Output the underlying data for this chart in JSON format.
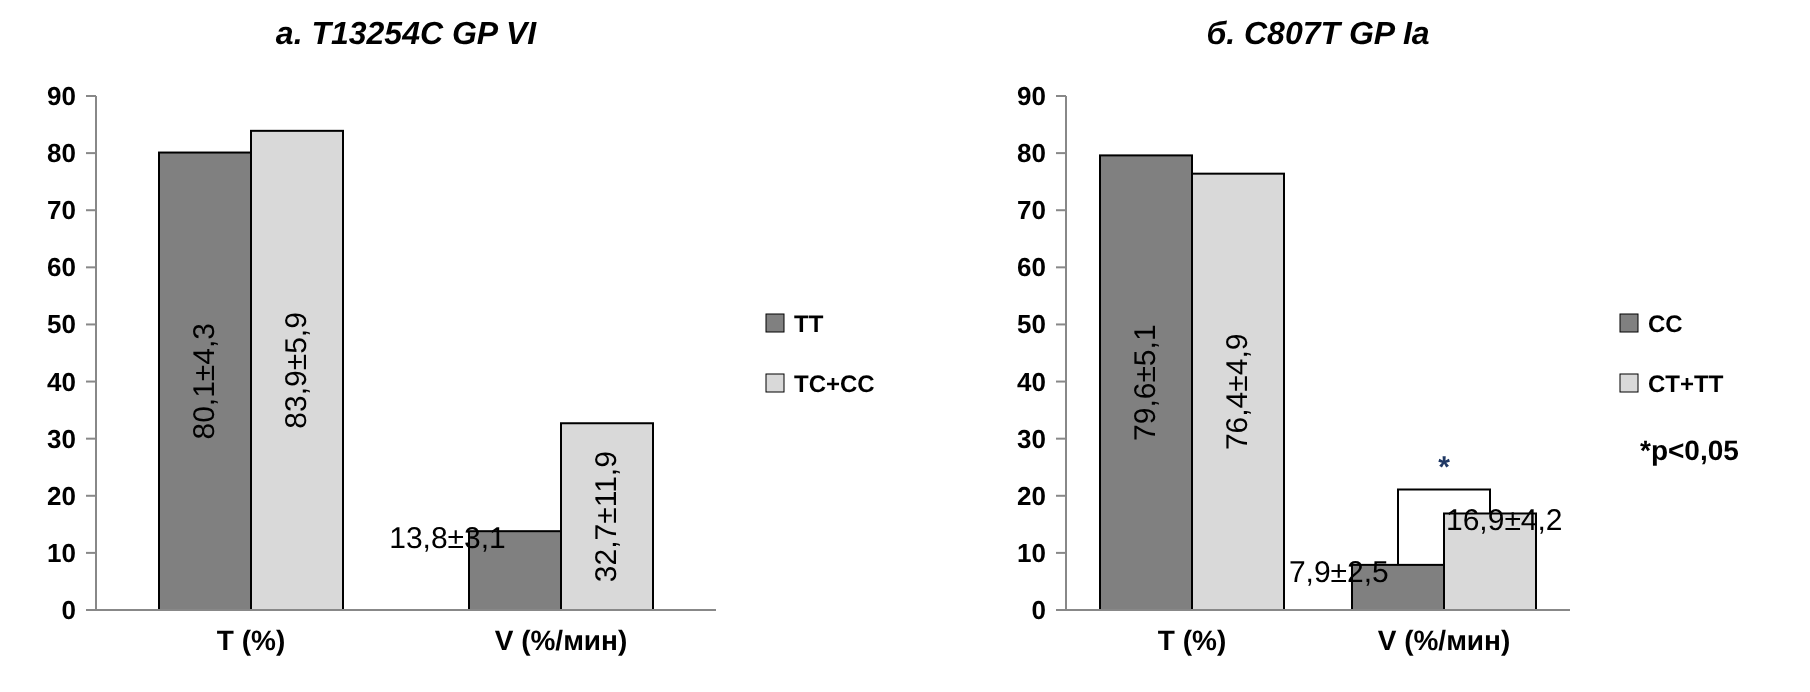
{
  "chart_data": [
    {
      "type": "bar",
      "title": "а. T13254C GP VI",
      "categories": [
        "T (%)",
        "V (%/мин)"
      ],
      "series": [
        {
          "name": "TT",
          "color": "#808080",
          "values": [
            80.1,
            13.8
          ],
          "value_labels": [
            "80,1±4,3",
            "13,8±3,1"
          ]
        },
        {
          "name": "TC+CC",
          "color": "#d9d9d9",
          "values": [
            83.9,
            32.7
          ],
          "value_labels": [
            "83,9±5,9",
            "32,7±11,9"
          ]
        }
      ],
      "ylim": [
        0,
        90
      ],
      "yticks": [
        0,
        10,
        20,
        30,
        40,
        50,
        60,
        70,
        80,
        90
      ],
      "grid": false,
      "legend": "right"
    },
    {
      "type": "bar",
      "title": "б. C807T GP Ia",
      "categories": [
        "T (%)",
        "V (%/мин)"
      ],
      "series": [
        {
          "name": "CC",
          "color": "#808080",
          "values": [
            79.6,
            7.9
          ],
          "value_labels": [
            "79,6±5,1",
            "7,9±2,5"
          ]
        },
        {
          "name": "CT+TT",
          "color": "#d9d9d9",
          "values": [
            76.4,
            16.9
          ],
          "value_labels": [
            "76,4±4,9",
            "16,9±4,2"
          ]
        }
      ],
      "ylim": [
        0,
        90
      ],
      "yticks": [
        0,
        10,
        20,
        30,
        40,
        50,
        60,
        70,
        80,
        90
      ],
      "grid": false,
      "legend": "right",
      "annotations": [
        "*",
        "*p<0,05"
      ]
    }
  ]
}
